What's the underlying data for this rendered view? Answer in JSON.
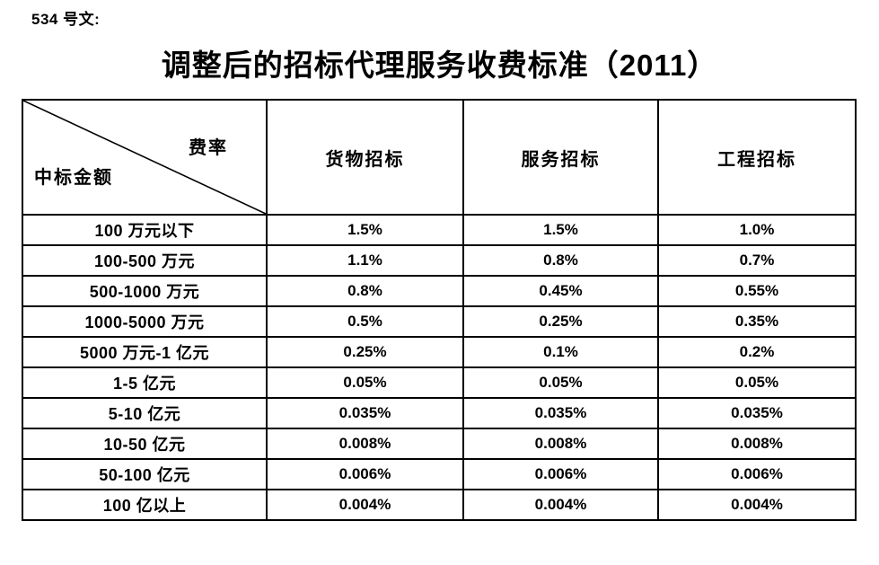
{
  "page": {
    "doc_label": "534 号文:",
    "title": "调整后的招标代理服务收费标准（2011）"
  },
  "table": {
    "corner": {
      "top_right": "费率",
      "bottom_left": "中标金额"
    },
    "columns": [
      "货物招标",
      "服务招标",
      "工程招标"
    ],
    "rows": [
      {
        "label": "100 万元以下",
        "values": [
          "1.5%",
          "1.5%",
          "1.0%"
        ]
      },
      {
        "label": "100-500 万元",
        "values": [
          "1.1%",
          "0.8%",
          "0.7%"
        ]
      },
      {
        "label": "500-1000 万元",
        "values": [
          "0.8%",
          "0.45%",
          "0.55%"
        ]
      },
      {
        "label": "1000-5000 万元",
        "values": [
          "0.5%",
          "0.25%",
          "0.35%"
        ]
      },
      {
        "label": "5000 万元-1 亿元",
        "values": [
          "0.25%",
          "0.1%",
          "0.2%"
        ]
      },
      {
        "label": "1-5 亿元",
        "values": [
          "0.05%",
          "0.05%",
          "0.05%"
        ]
      },
      {
        "label": "5-10 亿元",
        "values": [
          "0.035%",
          "0.035%",
          "0.035%"
        ]
      },
      {
        "label": "10-50 亿元",
        "values": [
          "0.008%",
          "0.008%",
          "0.008%"
        ]
      },
      {
        "label": "50-100 亿元",
        "values": [
          "0.006%",
          "0.006%",
          "0.006%"
        ]
      },
      {
        "label": "100 亿以上",
        "values": [
          "0.004%",
          "0.004%",
          "0.004%"
        ]
      }
    ]
  },
  "colors": {
    "text": "#000000",
    "background": "#ffffff",
    "border": "#000000"
  }
}
